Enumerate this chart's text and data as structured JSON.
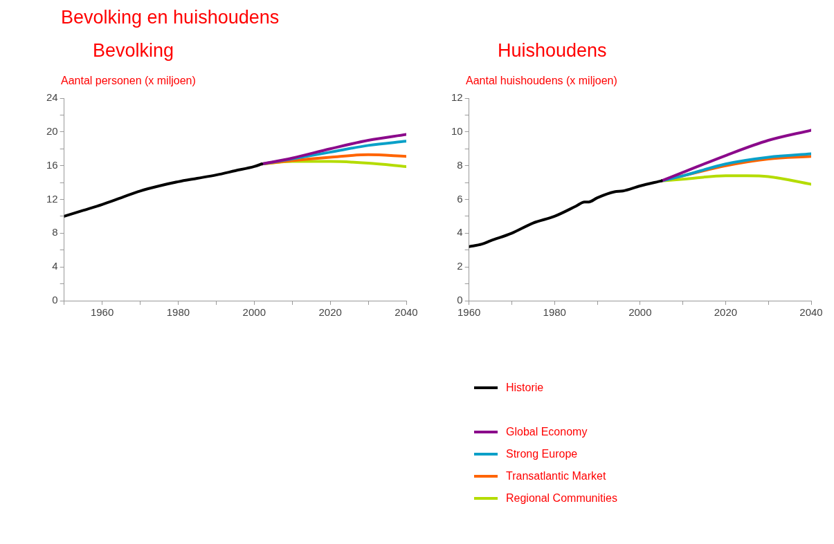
{
  "chart_data": [
    {
      "type": "line",
      "title": "Bevolking en huishoudens",
      "subtitle": "Bevolking",
      "ylabel": "Aantal personen (x miljoen)",
      "xlim": [
        1950,
        2040
      ],
      "xticks": [
        {
          "value": 1950,
          "label": null
        },
        1960,
        {
          "value": 1970,
          "label": null
        },
        1980,
        {
          "value": 1990,
          "label": null
        },
        2000,
        {
          "value": 2010,
          "label": null
        },
        2020,
        {
          "value": 2030,
          "label": null
        },
        2040
      ],
      "ylim": [
        0,
        24
      ],
      "yticks": [
        0,
        {
          "value": 2,
          "label": null
        },
        4,
        {
          "value": 6,
          "label": null
        },
        8,
        {
          "value": 10,
          "label": null
        },
        12,
        {
          "value": 14,
          "label": null
        },
        16,
        {
          "value": 18,
          "label": null
        },
        20,
        {
          "value": 22,
          "label": null
        },
        24
      ],
      "series": [
        {
          "color": "#000000",
          "x": [
            1950,
            1955,
            1960,
            1965,
            1970,
            1975,
            1980,
            1985,
            1990,
            1995,
            2000,
            2002
          ],
          "values": [
            10.0,
            10.7,
            11.4,
            12.2,
            13.0,
            13.6,
            14.1,
            14.5,
            14.9,
            15.4,
            15.9,
            16.2
          ]
        },
        {
          "color": "#8b0a8b",
          "x": [
            2002,
            2010,
            2020,
            2030,
            2040
          ],
          "values": [
            16.2,
            16.9,
            18.0,
            19.0,
            19.7
          ]
        },
        {
          "color": "#0aa0c8",
          "x": [
            2002,
            2010,
            2020,
            2030,
            2040
          ],
          "values": [
            16.2,
            16.8,
            17.6,
            18.4,
            18.9
          ]
        },
        {
          "color": "#ff6400",
          "x": [
            2002,
            2010,
            2020,
            2030,
            2040
          ],
          "values": [
            16.2,
            16.6,
            17.0,
            17.3,
            17.1
          ]
        },
        {
          "color": "#b4dc00",
          "x": [
            2002,
            2010,
            2020,
            2030,
            2040
          ],
          "values": [
            16.2,
            16.5,
            16.5,
            16.3,
            15.9
          ]
        }
      ]
    },
    {
      "type": "line",
      "title": "Huishoudens",
      "ylabel": "Aantal huishoudens (x miljoen)",
      "legend": "bottom",
      "xlim": [
        1960,
        2040
      ],
      "xticks": [
        1960,
        {
          "value": 1970,
          "label": null
        },
        1980,
        {
          "value": 1990,
          "label": null
        },
        2000,
        {
          "value": 2010,
          "label": null
        },
        2020,
        {
          "value": 2030,
          "label": null
        },
        2040
      ],
      "ylim": [
        0,
        12
      ],
      "yticks": [
        0,
        {
          "value": 1,
          "label": null
        },
        2,
        {
          "value": 3,
          "label": null
        },
        4,
        {
          "value": 5,
          "label": null
        },
        6,
        {
          "value": 7,
          "label": null
        },
        8,
        {
          "value": 9,
          "label": null
        },
        10,
        {
          "value": 11,
          "label": null
        },
        12
      ],
      "series": [
        {
          "name": "Historie",
          "color": "#000000",
          "x": [
            1960,
            1963,
            1965,
            1970,
            1975,
            1980,
            1985,
            1987,
            1988,
            1990,
            1994,
            1996,
            2000,
            2005
          ],
          "values": [
            3.2,
            3.35,
            3.55,
            4.0,
            4.6,
            5.0,
            5.6,
            5.85,
            5.85,
            6.1,
            6.45,
            6.5,
            6.8,
            7.1
          ]
        },
        {
          "name": "Global Economy",
          "color": "#8b0a8b",
          "x": [
            2005,
            2010,
            2020,
            2030,
            2040
          ],
          "values": [
            7.1,
            7.6,
            8.6,
            9.5,
            10.1
          ]
        },
        {
          "name": "Strong Europe",
          "color": "#0aa0c8",
          "x": [
            2005,
            2010,
            2020,
            2030,
            2040
          ],
          "values": [
            7.1,
            7.4,
            8.1,
            8.5,
            8.7
          ]
        },
        {
          "name": "Transatlantic Market",
          "color": "#ff6400",
          "x": [
            2005,
            2010,
            2020,
            2030,
            2040
          ],
          "values": [
            7.1,
            7.4,
            8.0,
            8.4,
            8.55
          ]
        },
        {
          "name": "Regional Communities",
          "color": "#b4dc00",
          "x": [
            2005,
            2010,
            2020,
            2025,
            2030,
            2040
          ],
          "values": [
            7.1,
            7.2,
            7.4,
            7.4,
            7.35,
            6.9
          ]
        }
      ]
    }
  ]
}
